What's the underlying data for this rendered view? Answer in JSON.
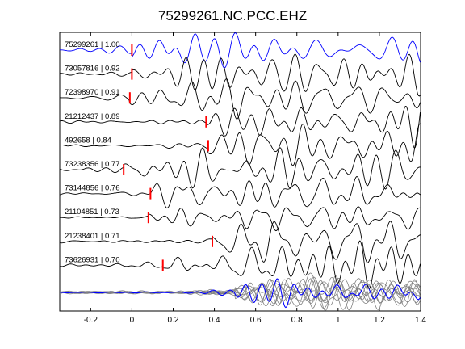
{
  "window": {
    "title": "75299261.NC.PCC.EHZ"
  },
  "chart_data": {
    "type": "line",
    "title": "75299261.NC.PCC.EHZ",
    "xlabel": "",
    "ylabel": "",
    "xlim": [
      -0.35,
      1.4
    ],
    "xticks": [
      -0.2,
      0,
      0.2,
      0.4,
      0.6,
      0.8,
      1,
      1.2,
      1.4
    ],
    "xtick_labels": [
      "-0.2",
      "0",
      "0.2",
      "0.4",
      "0.6",
      "0.8",
      "1",
      "1.2",
      "1.4"
    ],
    "grid": false,
    "colors": {
      "reference": "#0000ff",
      "trace": "#000000",
      "pick": "#ff0000",
      "stack": "#808080",
      "axes": "#000000"
    },
    "series": [
      {
        "name": "75299261 | 1.00",
        "pick_time": 0.0,
        "reference": true
      },
      {
        "name": "73057816 | 0.92",
        "pick_time": 0.0
      },
      {
        "name": "72398970 | 0.91",
        "pick_time": -0.01
      },
      {
        "name": "21212437 | 0.89",
        "pick_time": 0.36
      },
      {
        "name": "492658 | 0.84",
        "pick_time": 0.37
      },
      {
        "name": "73238356 | 0.77",
        "pick_time": -0.04
      },
      {
        "name": "73144856 | 0.76",
        "pick_time": 0.09
      },
      {
        "name": "21104851 | 0.73",
        "pick_time": 0.08
      },
      {
        "name": "21238401 | 0.71",
        "pick_time": 0.39
      },
      {
        "name": "73626931 | 0.70",
        "pick_time": 0.15
      }
    ],
    "stack": {
      "trace_count": 10,
      "reference_color": "#0000ff",
      "others_color": "#808080"
    }
  }
}
